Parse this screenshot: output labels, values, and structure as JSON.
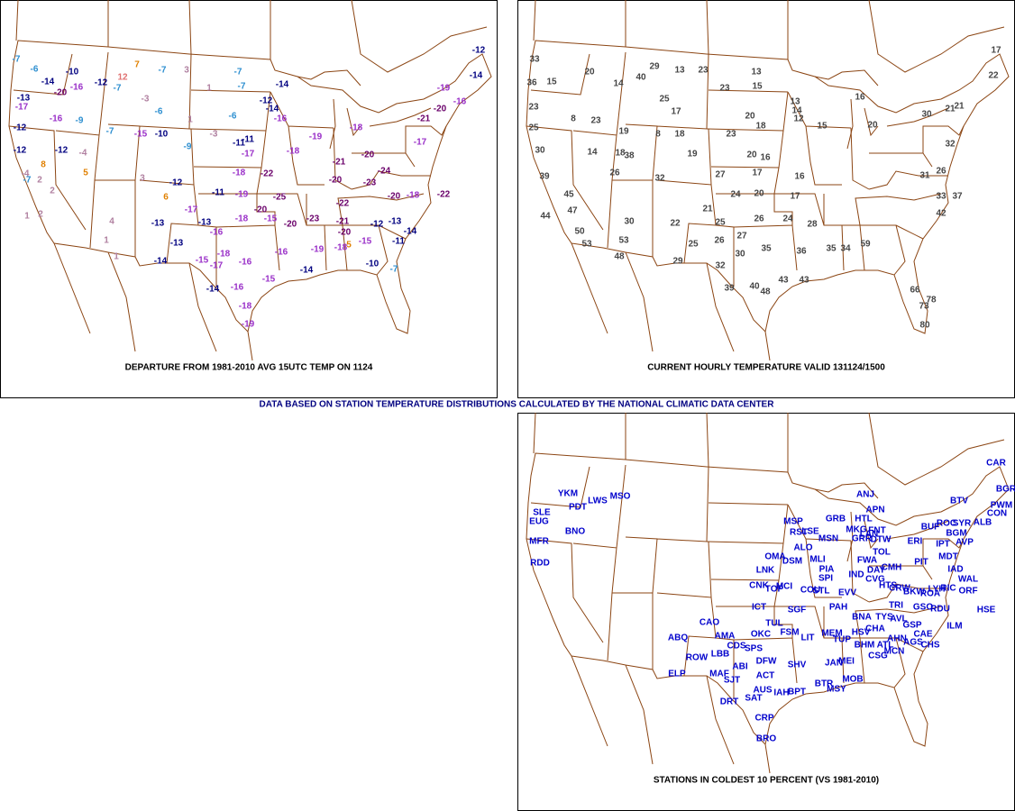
{
  "note": "DATA BASED ON STATION TEMPERATURE DISTRIBUTIONS CALCULATED BY THE NATIONAL CLIMATIC DATA CENTER",
  "panels": [
    {
      "caption": "DEPARTURE FROM 1981-2010 AVG 15UTC TEMP ON 1124",
      "labels": [
        -7,
        -6,
        -14,
        -10,
        -12,
        7,
        -7,
        12,
        -7,
        -20,
        -16,
        -13,
        -17,
        -16,
        -9,
        -12,
        -7,
        -12,
        -12,
        -15,
        -10,
        -6,
        3,
        1,
        -7,
        -7,
        1,
        -6,
        -3,
        -3,
        -11,
        -9,
        -14,
        -12,
        -14,
        -16,
        -11,
        -17,
        -12,
        -11,
        -19,
        -18,
        -22,
        -25,
        -20,
        -15,
        -20,
        -23,
        -22,
        -21,
        -20,
        -18,
        -13,
        -13,
        -13,
        -17,
        -16,
        -15,
        -17,
        -18,
        -14,
        -14,
        -16,
        -16,
        -15,
        -16,
        -14,
        -19,
        -18,
        -15,
        5,
        -12,
        -13,
        -14,
        -11,
        -10,
        -7,
        -19,
        -18,
        -4,
        -7,
        2,
        2,
        -4,
        8,
        5,
        6,
        3,
        4,
        1,
        1,
        1,
        2,
        -12,
        -14,
        -19,
        -16,
        -20,
        -21,
        -17,
        -20,
        -21,
        -20,
        -24,
        -23,
        -20,
        -18,
        -22,
        -19,
        -18,
        -18
      ]
    },
    {
      "caption": "CURRENT HOURLY TEMPERATURE VALID 131124/1500",
      "labels": [
        33,
        36,
        15,
        20,
        14,
        40,
        29,
        13,
        23,
        13,
        15,
        23,
        25,
        23,
        8,
        23,
        17,
        19,
        8,
        18,
        23,
        20,
        18,
        13,
        14,
        12,
        15,
        16,
        20,
        30,
        21,
        25,
        30,
        14,
        18,
        38,
        26,
        32,
        19,
        20,
        16,
        27,
        17,
        16,
        24,
        20,
        17,
        21,
        30,
        22,
        25,
        26,
        24,
        28,
        53,
        48,
        29,
        25,
        26,
        27,
        30,
        32,
        35,
        36,
        39,
        40,
        43,
        43,
        48,
        35,
        34,
        59,
        39,
        45,
        47,
        44,
        50,
        53,
        80,
        73,
        78,
        66,
        17,
        22,
        21,
        32,
        26,
        31,
        33,
        37,
        42
      ]
    }
  ],
  "stations_panel": {
    "caption": "STATIONS IN COLDEST 10 PERCENT (VS 1981-2010)",
    "labels": [
      "CAR",
      "BGR",
      "PWM",
      "CON",
      "BTV",
      "YKM",
      "PDT",
      "LWS",
      "MSO",
      "SLE",
      "EUG",
      "BNO",
      "MFR",
      "RDD",
      "ANJ",
      "APN",
      "HTL",
      "GRB",
      "MSP",
      "RST",
      "LSE",
      "ALO",
      "MSN",
      "DSM",
      "MLI",
      "OMA",
      "LNK",
      "PIA",
      "SPI",
      "CNK",
      "TOP",
      "MCI",
      "COU",
      "STL",
      "ICT",
      "SGF",
      "TUL",
      "OKC",
      "FSM",
      "LIT",
      "CAO",
      "AMA",
      "ABQ",
      "LBB",
      "ROW",
      "CDS",
      "SPS",
      "ELP",
      "MAF",
      "ABI",
      "DFW",
      "SJT",
      "ACT",
      "SHV",
      "DRT",
      "AUS",
      "SAT",
      "IAH",
      "BPT",
      "CRP",
      "BRO",
      "MEM",
      "TUP",
      "JAN",
      "MEI",
      "BTR",
      "MSY",
      "MOB",
      "HSV",
      "BNA",
      "BHM",
      "ATL",
      "CSG",
      "MCN",
      "AHN",
      "AGS",
      "CAE",
      "CHS",
      "GSP",
      "TYS",
      "AVL",
      "TRI",
      "CHA",
      "ILM",
      "HSE",
      "GSO",
      "RDU",
      "ORF",
      "RIC",
      "WAL",
      "EVV",
      "PAH",
      "IND",
      "CVG",
      "DAY",
      "CMH",
      "FWA",
      "DTW",
      "FNT",
      "TOL",
      "MKG",
      "GRR",
      "LAN",
      "ERI",
      "BUF",
      "ROC",
      "SYR",
      "ALB",
      "BGM",
      "IPT",
      "AVP",
      "MDT",
      "PIT",
      "CRW",
      "HTS",
      "BKW",
      "ROA",
      "LYH",
      "IAD"
    ]
  }
}
